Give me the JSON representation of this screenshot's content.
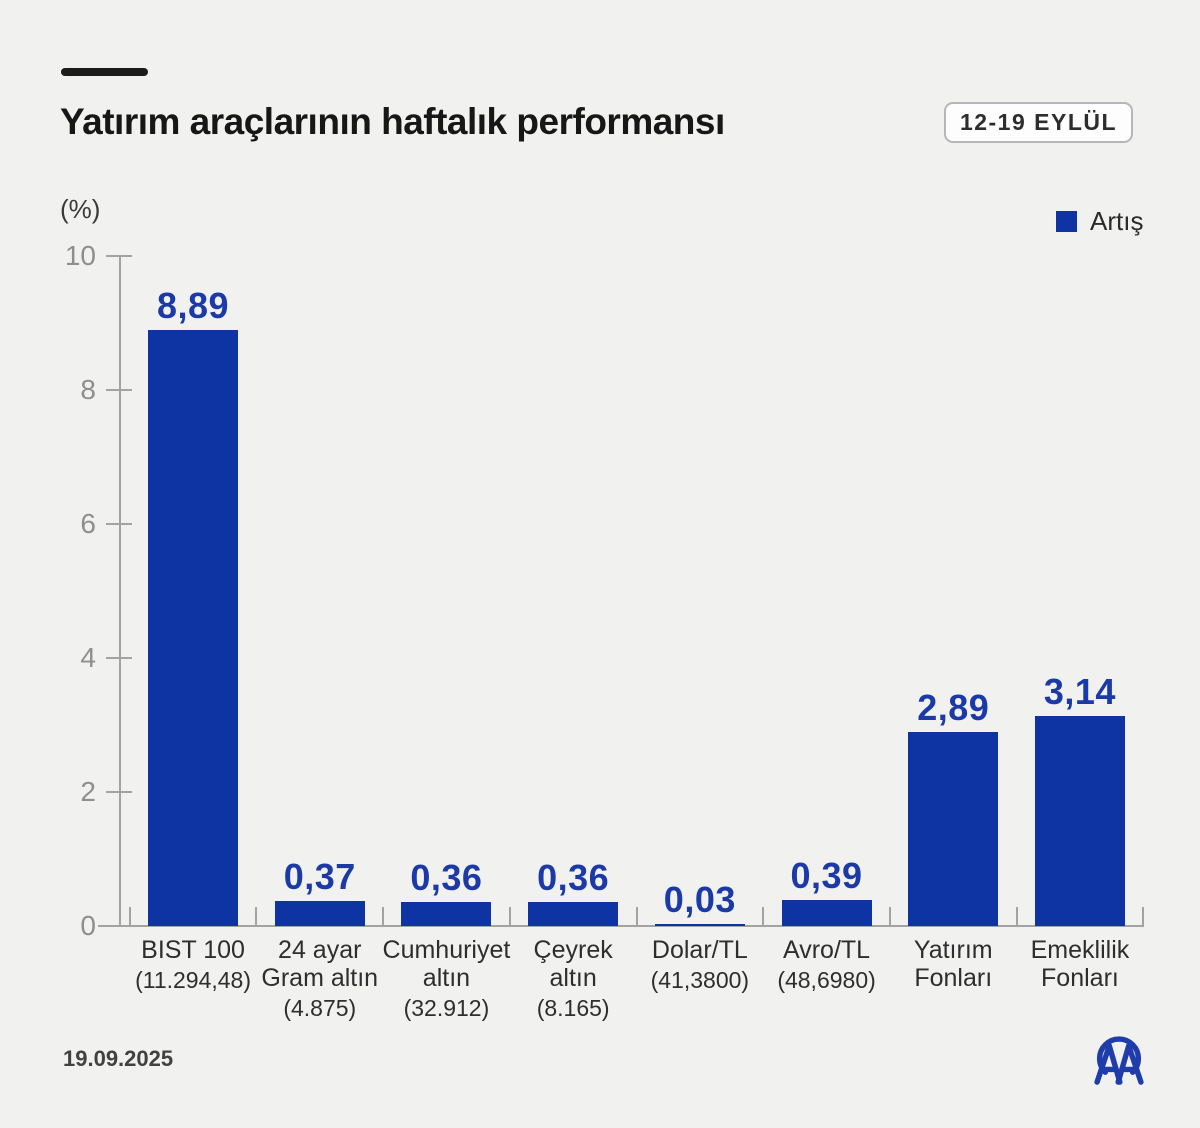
{
  "page": {
    "background_color": "#f1f1f0"
  },
  "header": {
    "title": "Yatırım araçlarının haftalık performansı",
    "date_badge": "12-19 EYLÜL"
  },
  "legend": {
    "label": "Artış",
    "color": "#0e33a2"
  },
  "chart_data": {
    "type": "bar",
    "title": "Yatırım araçlarının haftalık performansı",
    "subtitle": "12-19 EYLÜL",
    "unit_label": "(%)",
    "xlabel": "",
    "ylabel": "(%)",
    "ylim": [
      0,
      10
    ],
    "yticks": [
      0,
      2,
      4,
      6,
      8,
      10
    ],
    "grid": false,
    "legend_position": "top-right",
    "legend_entries": [
      "Artış"
    ],
    "bar_color": "#0e33a2",
    "value_label_color": "#1b3aa8",
    "categories": [
      {
        "name_lines": [
          "BIST 100"
        ],
        "detail": "(11.294,48)",
        "value": 8.89,
        "value_label": "8,89"
      },
      {
        "name_lines": [
          "24 ayar",
          "Gram altın"
        ],
        "detail": "(4.875)",
        "value": 0.37,
        "value_label": "0,37"
      },
      {
        "name_lines": [
          "Cumhuriyet",
          "altın"
        ],
        "detail": "(32.912)",
        "value": 0.36,
        "value_label": "0,36"
      },
      {
        "name_lines": [
          "Çeyrek",
          "altın"
        ],
        "detail": "(8.165)",
        "value": 0.36,
        "value_label": "0,36"
      },
      {
        "name_lines": [
          "Dolar/TL"
        ],
        "detail": "(41,3800)",
        "value": 0.03,
        "value_label": "0,03"
      },
      {
        "name_lines": [
          "Avro/TL"
        ],
        "detail": "(48,6980)",
        "value": 0.39,
        "value_label": "0,39"
      },
      {
        "name_lines": [
          "Yatırım",
          "Fonları"
        ],
        "detail": "",
        "value": 2.89,
        "value_label": "2,89"
      },
      {
        "name_lines": [
          "Emeklilik",
          "Fonları"
        ],
        "detail": "",
        "value": 3.14,
        "value_label": "3,14"
      }
    ]
  },
  "footer": {
    "date": "19.09.2025",
    "logo": "aa-logo"
  }
}
